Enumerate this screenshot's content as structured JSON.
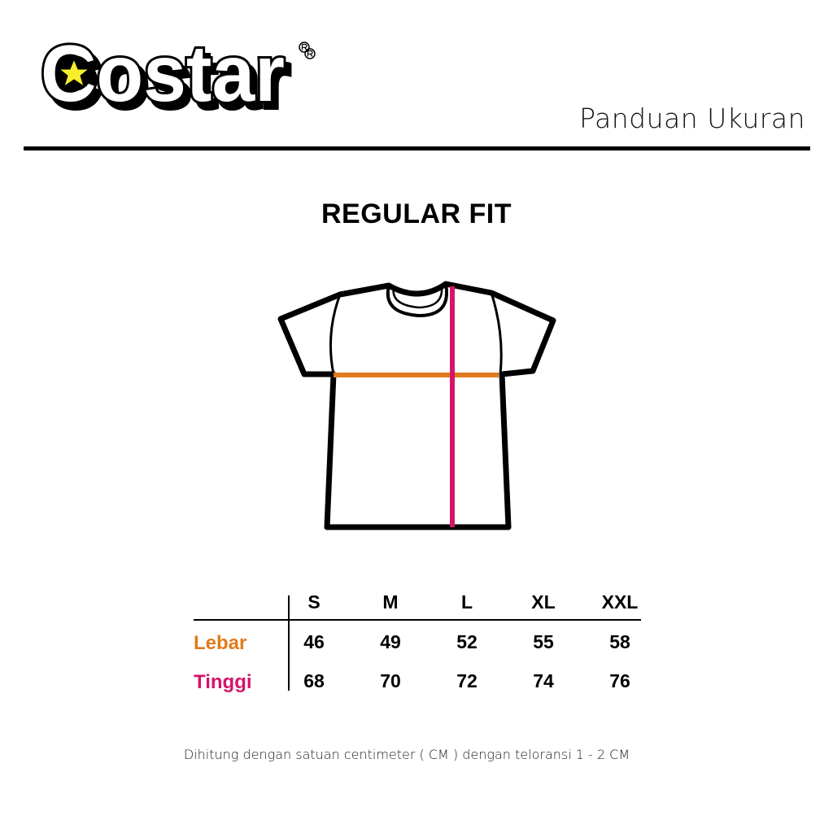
{
  "header": {
    "logo_text": "Costar",
    "subtitle": "Panduan Ukuran"
  },
  "fit_title": "REGULAR FIT",
  "colors": {
    "lebar": "#e07a1c",
    "tinggi": "#d4146a",
    "star": "#f5ee2a"
  },
  "table": {
    "sizes": [
      "S",
      "M",
      "L",
      "XL",
      "XXL"
    ],
    "rows": [
      {
        "label": "Lebar",
        "values": [
          "46",
          "49",
          "52",
          "55",
          "58"
        ]
      },
      {
        "label": "Tinggi",
        "values": [
          "68",
          "70",
          "72",
          "74",
          "76"
        ]
      }
    ]
  },
  "note": "Dihitung dengan satuan centimeter ( CM ) dengan teloransi 1 - 2 CM"
}
